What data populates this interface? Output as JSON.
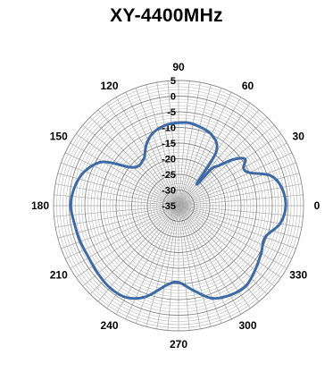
{
  "chart_data": {
    "type": "polar-line",
    "title": "XY-4400MHz",
    "theta_unit": "degrees",
    "r_range": [
      -35,
      5
    ],
    "r_ticks": [
      5,
      0,
      -5,
      -10,
      -15,
      -20,
      -25,
      -30,
      -35
    ],
    "r_tick_labels": [
      "5",
      "0",
      "-5",
      "-10",
      "-15",
      "-20",
      "-25",
      "-30",
      "-35"
    ],
    "angle_labels": [
      {
        "angle": 0,
        "text": "0"
      },
      {
        "angle": 30,
        "text": "30"
      },
      {
        "angle": 60,
        "text": "60"
      },
      {
        "angle": 90,
        "text": "90"
      },
      {
        "angle": 120,
        "text": "120"
      },
      {
        "angle": 150,
        "text": "150"
      },
      {
        "angle": 180,
        "text": "180"
      },
      {
        "angle": 210,
        "text": "210"
      },
      {
        "angle": 240,
        "text": "240"
      },
      {
        "angle": 270,
        "text": "270"
      },
      {
        "angle": 300,
        "text": "300"
      },
      {
        "angle": 330,
        "text": "330"
      }
    ],
    "grid": true,
    "spoke_step_deg": 5,
    "series": [
      {
        "color": "#3d6aa6",
        "points": [
          [
            0,
            -0.7
          ],
          [
            10,
            -1.5
          ],
          [
            18,
            -4
          ],
          [
            25,
            -10
          ],
          [
            30,
            -11
          ],
          [
            35,
            -9
          ],
          [
            40,
            -12
          ],
          [
            45,
            -17
          ],
          [
            48,
            -19
          ],
          [
            50,
            -26
          ],
          [
            55,
            -14
          ],
          [
            65,
            -10
          ],
          [
            80,
            -8.5
          ],
          [
            90,
            -8.5
          ],
          [
            100,
            -9
          ],
          [
            110,
            -10.5
          ],
          [
            118,
            -13
          ],
          [
            125,
            -16
          ],
          [
            128,
            -16.5
          ],
          [
            135,
            -17
          ],
          [
            142,
            -15
          ],
          [
            150,
            -7
          ],
          [
            160,
            -3
          ],
          [
            170,
            -1.2
          ],
          [
            180,
            -0.5
          ],
          [
            190,
            -1.2
          ],
          [
            200,
            -1.5
          ],
          [
            210,
            -1.8
          ],
          [
            220,
            -1.3
          ],
          [
            230,
            -0.8
          ],
          [
            240,
            -1.2
          ],
          [
            250,
            -4
          ],
          [
            262,
            -9.5
          ],
          [
            270,
            -10.5
          ],
          [
            280,
            -7.5
          ],
          [
            290,
            -3.5
          ],
          [
            300,
            -2
          ],
          [
            310,
            -1.5
          ],
          [
            320,
            -3
          ],
          [
            330,
            -4.5
          ],
          [
            340,
            -5.5
          ],
          [
            350,
            -2
          ],
          [
            360,
            -0.7
          ]
        ]
      }
    ]
  }
}
